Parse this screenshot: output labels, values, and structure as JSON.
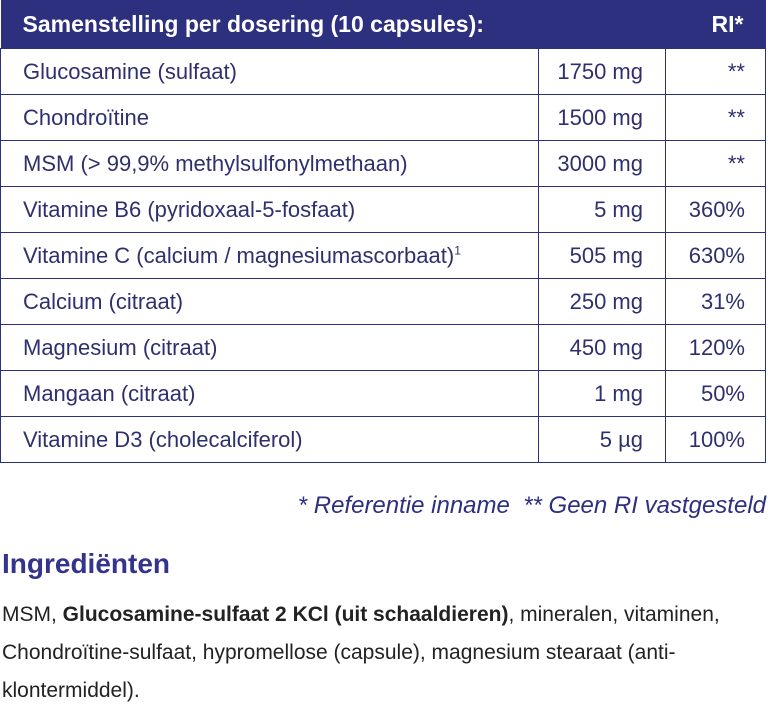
{
  "table": {
    "header": [
      "Samenstelling per dosering (10 capsules):",
      "RI*"
    ],
    "rows": [
      {
        "name": "Glucosamine (sulfaat)",
        "amount": "1750 mg",
        "ri": "**"
      },
      {
        "name": "Chondroïtine",
        "amount": "1500 mg",
        "ri": "**"
      },
      {
        "name": "MSM (> 99,9% methylsulfonylmethaan)",
        "amount": "3000 mg",
        "ri": "**"
      },
      {
        "name": "Vitamine B6 (pyridoxaal-5-fosfaat)",
        "amount": "5 mg",
        "ri": "360%"
      },
      {
        "name": "Vitamine C (calcium / magnesiumascorbaat)",
        "sup": "1",
        "amount": "505 mg",
        "ri": "630%"
      },
      {
        "name": "Calcium (citraat)",
        "amount": "250 mg",
        "ri": "31%"
      },
      {
        "name": "Magnesium (citraat)",
        "amount": "450 mg",
        "ri": "120%"
      },
      {
        "name": "Mangaan (citraat)",
        "amount": "1 mg",
        "ri": "50%"
      },
      {
        "name": "Vitamine D3 (cholecalciferol)",
        "amount": "5 µg",
        "ri": "100%"
      }
    ],
    "footnote": "* Referentie inname  ** Geen RI vastgesteld"
  },
  "ingredients": {
    "title": "Ingrediënten",
    "parts": [
      {
        "text": "MSM, ",
        "bold": false
      },
      {
        "text": "Glucosamine-sulfaat 2 KCl (uit schaaldieren)",
        "bold": true
      },
      {
        "text": ", mineralen, vitaminen, Chondroïtine-sulfaat, hypromellose (capsule), magnesium stearaat (anti-klontermiddel).",
        "bold": false
      }
    ]
  }
}
